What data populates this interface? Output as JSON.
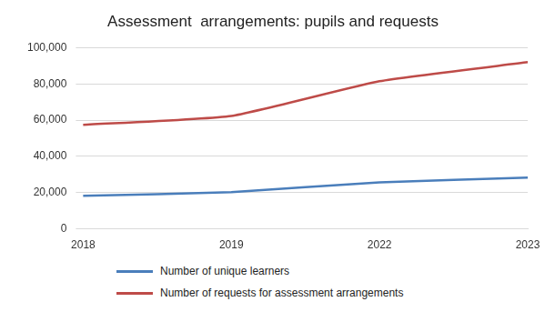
{
  "chart_data": {
    "type": "line",
    "title": "Assessment  arrangements: pupils and requests",
    "categories": [
      "2018",
      "2019",
      "2022",
      "2023"
    ],
    "series": [
      {
        "name": "Number of unique learners",
        "color": "#4a7ebb",
        "values": [
          18200,
          20300,
          25700,
          28300
        ]
      },
      {
        "name": "Number of requests for assessment arrangements",
        "color": "#be4b48",
        "values": [
          57400,
          62300,
          81500,
          92000
        ]
      }
    ],
    "ylim": [
      0,
      100000
    ],
    "yticks": [
      0,
      {
        "value": 20000,
        "label": "20,000"
      },
      {
        "value": 40000,
        "label": "40,000"
      },
      {
        "value": 60000,
        "label": "60,000"
      },
      {
        "value": 80000,
        "label": "80,000"
      },
      {
        "value": 100000,
        "label": "100,000"
      }
    ],
    "grid": true,
    "legend": "bottom"
  }
}
